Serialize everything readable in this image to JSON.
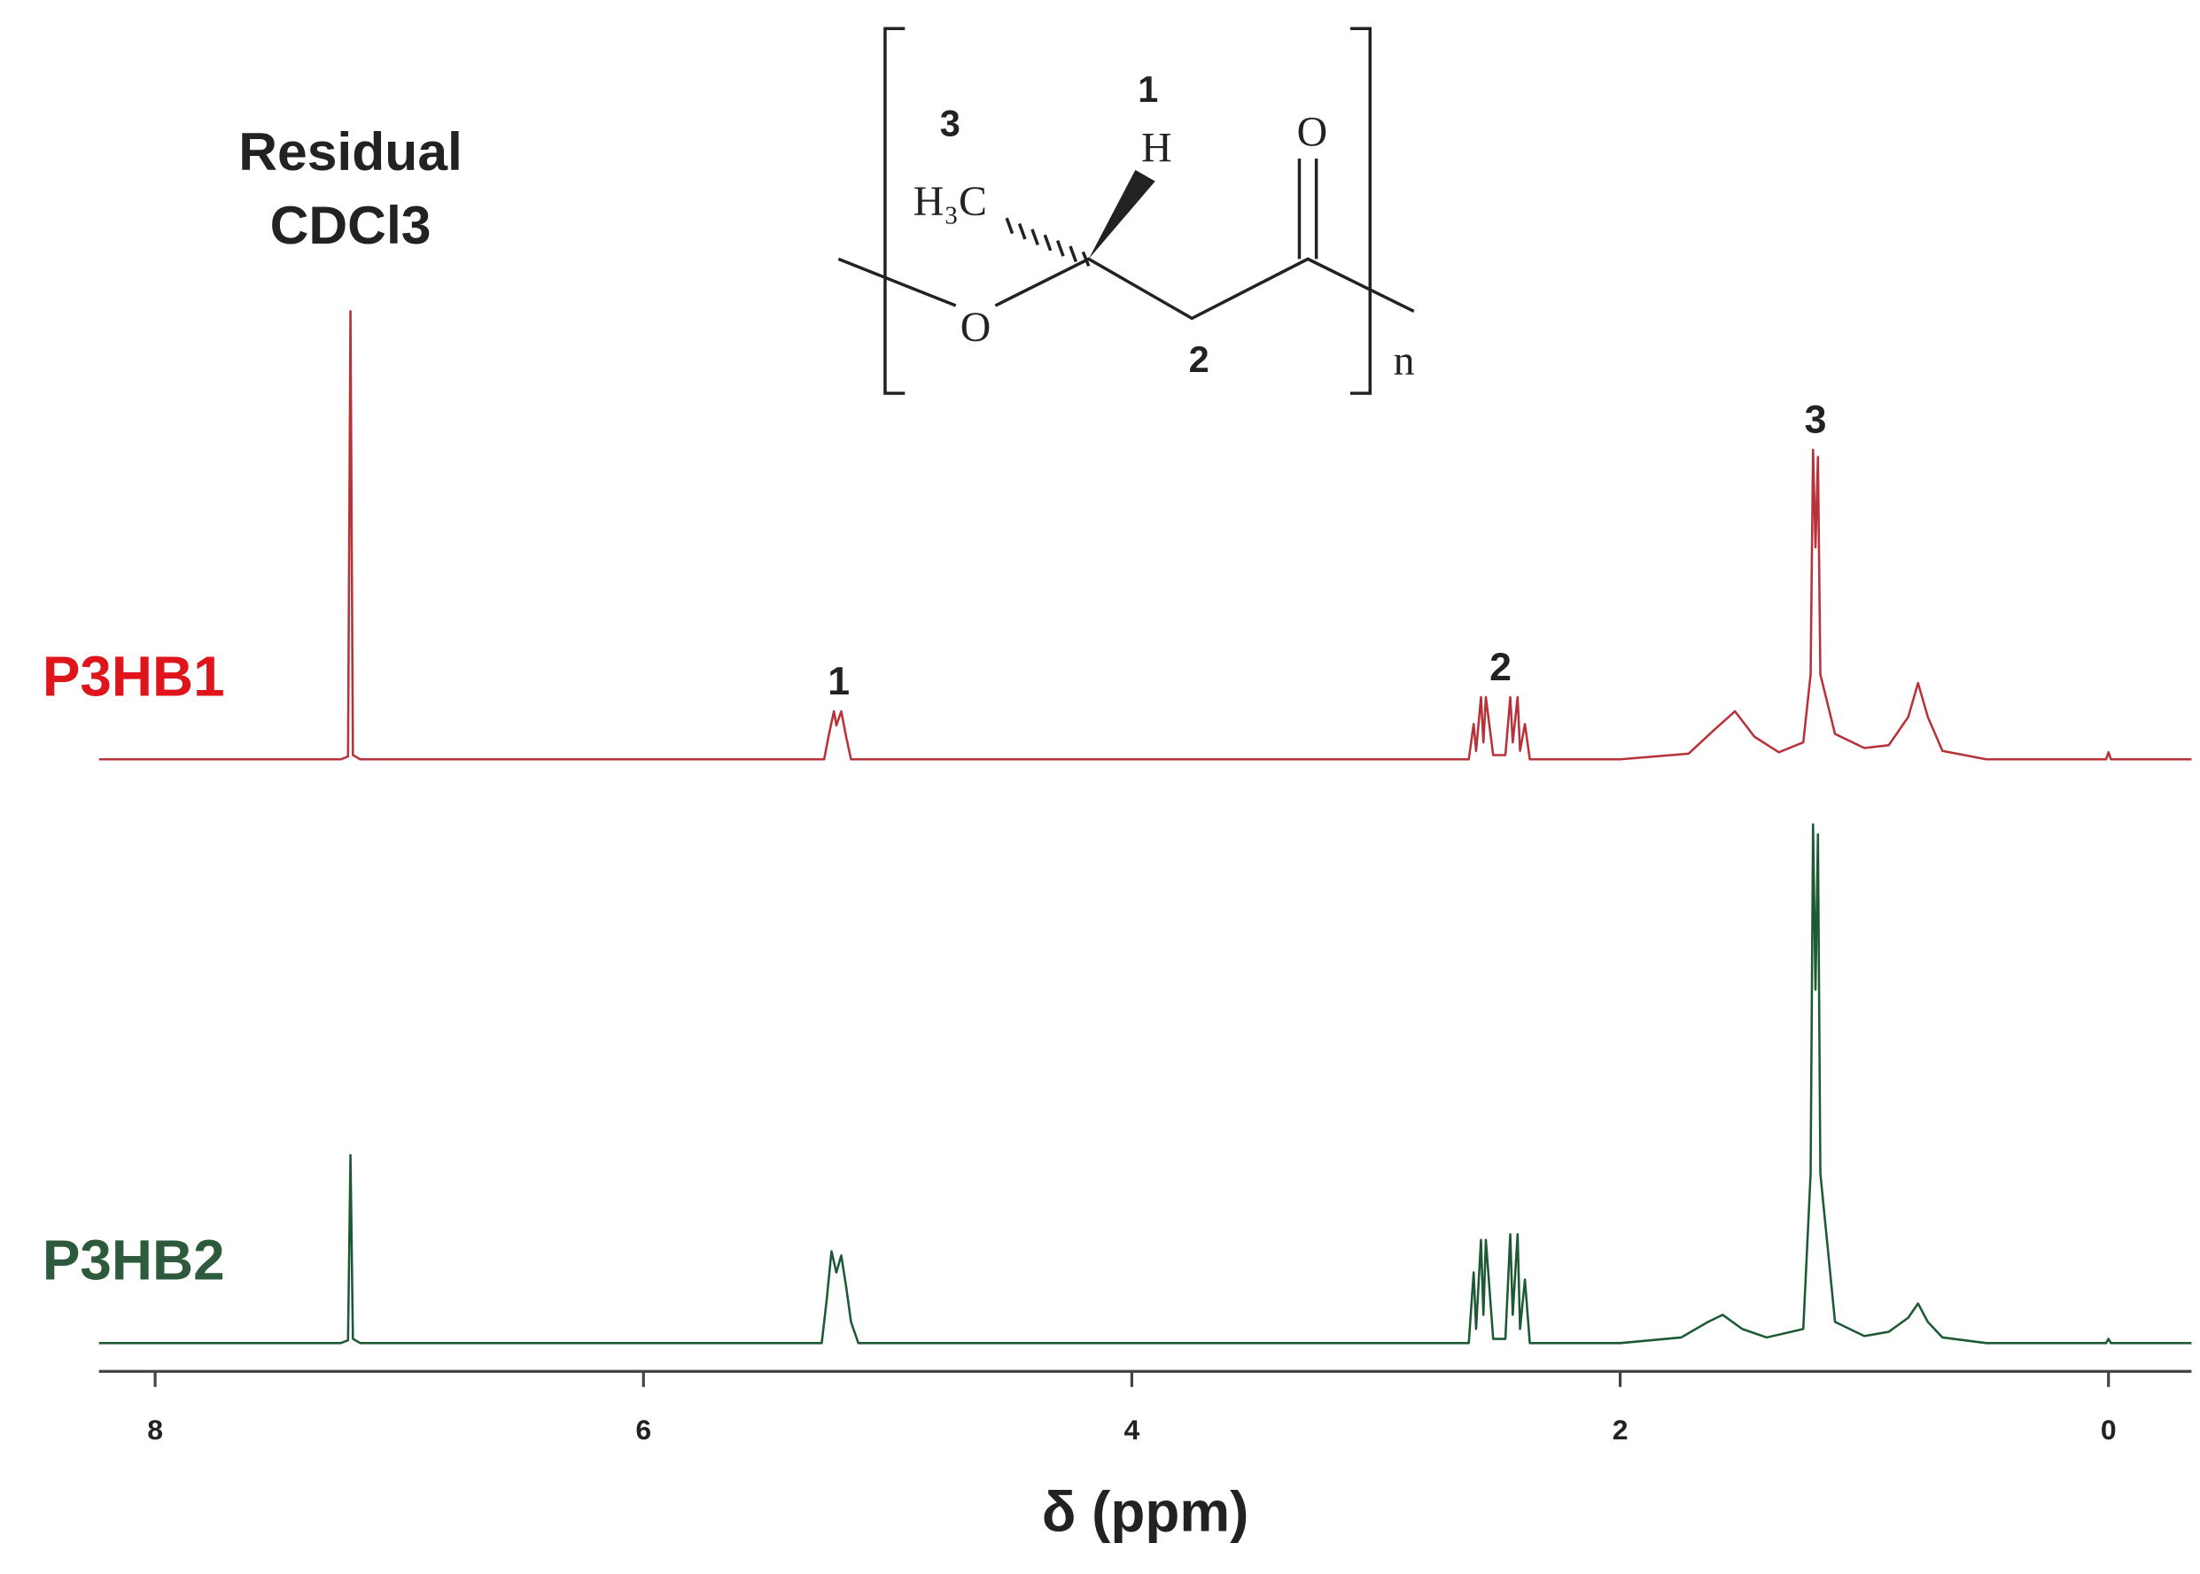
{
  "structure": {
    "label_3": "3",
    "label_1": "1",
    "label_2": "2",
    "hydrogen": "H",
    "methyl": "H₃C",
    "carbonyl_oxygen": "O",
    "ester_oxygen": "O",
    "repeat": "n"
  },
  "chart_data": [
    {
      "type": "line",
      "xlim": [
        8.23,
        -0.34
      ],
      "ylim": [
        0,
        330
      ],
      "series": [
        {
          "name": "P3HB1",
          "color": "#b8323a",
          "label_color": "#e0151b",
          "x": [
            8.23,
            7.24,
            7.21,
            7.2,
            7.19,
            7.16,
            7.0,
            5.26,
            5.24,
            5.22,
            5.21,
            5.19,
            5.17,
            5.15,
            2.62,
            2.6,
            2.59,
            2.57,
            2.56,
            2.55,
            2.52,
            2.47,
            2.45,
            2.44,
            2.42,
            2.41,
            2.39,
            2.37,
            2.0,
            1.72,
            1.62,
            1.53,
            1.45,
            1.35,
            1.25,
            1.22,
            1.21,
            1.2,
            1.19,
            1.18,
            1.12,
            1.0,
            0.9,
            0.82,
            0.78,
            0.74,
            0.68,
            0.5,
            0.01,
            0.0,
            -0.01,
            -0.34
          ],
          "values": [
            0,
            0,
            2,
            317,
            3,
            0,
            0,
            0,
            18,
            34,
            24,
            34,
            16,
            0,
            0,
            25,
            6,
            44,
            12,
            44,
            3,
            3,
            44,
            12,
            44,
            6,
            25,
            0,
            0,
            4,
            20,
            34,
            16,
            5,
            12,
            60,
            219,
            150,
            214,
            60,
            18,
            8,
            10,
            30,
            54,
            30,
            6,
            0,
            0,
            5,
            0,
            0
          ]
        }
      ],
      "annotations": [
        {
          "lines": [
            "Residual",
            "CDCl3"
          ],
          "x": 7.2
        },
        {
          "lines": [
            "1"
          ],
          "x": 5.2
        },
        {
          "lines": [
            "2"
          ],
          "x": 2.49
        },
        {
          "lines": [
            "3"
          ],
          "x": 1.2
        }
      ]
    },
    {
      "type": "line",
      "xlim": [
        8.23,
        -0.34
      ],
      "ylim": [
        0,
        380
      ],
      "xlabel": "δ (ppm)",
      "xticks": [
        8,
        6,
        4,
        2,
        0
      ],
      "series": [
        {
          "name": "P3HB2",
          "color": "#1d5a33",
          "label_color": "#2d5a3d",
          "x": [
            8.23,
            7.24,
            7.21,
            7.2,
            7.19,
            7.16,
            7.0,
            5.27,
            5.25,
            5.23,
            5.21,
            5.19,
            5.17,
            5.15,
            5.12,
            2.62,
            2.6,
            2.59,
            2.57,
            2.56,
            2.55,
            2.52,
            2.47,
            2.45,
            2.44,
            2.42,
            2.41,
            2.39,
            2.37,
            2.0,
            1.75,
            1.64,
            1.58,
            1.5,
            1.4,
            1.25,
            1.22,
            1.21,
            1.2,
            1.19,
            1.18,
            1.12,
            1.0,
            0.9,
            0.82,
            0.78,
            0.74,
            0.68,
            0.5,
            0.01,
            0.0,
            -0.01,
            -0.34
          ],
          "values": [
            0,
            0,
            2,
            133,
            3,
            0,
            0,
            0,
            30,
            65,
            50,
            62,
            40,
            15,
            0,
            0,
            50,
            10,
            73,
            20,
            73,
            3,
            3,
            77,
            20,
            77,
            10,
            45,
            0,
            0,
            4,
            15,
            20,
            10,
            4,
            10,
            120,
            367,
            250,
            360,
            120,
            15,
            5,
            8,
            18,
            28,
            15,
            4,
            0,
            0,
            3,
            0,
            0
          ]
        }
      ]
    }
  ]
}
